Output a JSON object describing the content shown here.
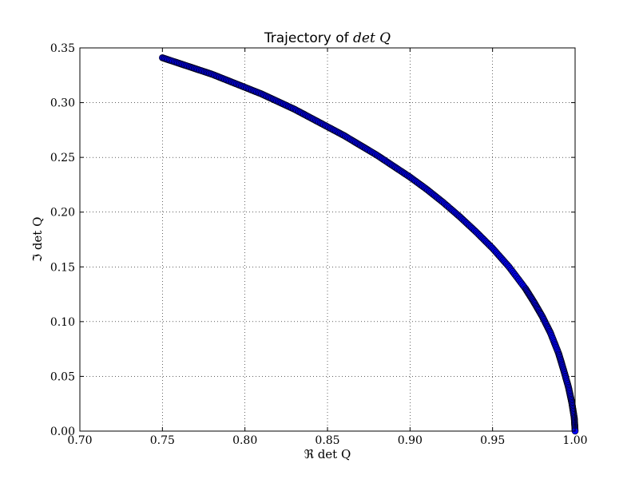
{
  "chart_data": {
    "type": "scatter",
    "title": {
      "prefix": "Trajectory of ",
      "math": "det Q"
    },
    "xlabel": "ℜ det Q",
    "ylabel": "ℑ det Q",
    "xlim": [
      0.7,
      1.0
    ],
    "ylim": [
      0.0,
      0.35
    ],
    "x_ticks": [
      "0.70",
      "0.75",
      "0.80",
      "0.85",
      "0.90",
      "0.95",
      "1.00"
    ],
    "y_ticks": [
      "0.00",
      "0.05",
      "0.10",
      "0.15",
      "0.20",
      "0.25",
      "0.30",
      "0.35"
    ],
    "grid": true,
    "marker_color": "#0000ff",
    "marker_edge_color": "#000000",
    "series": [
      {
        "x": [
          0.75,
          0.76,
          0.77,
          0.78,
          0.79,
          0.8,
          0.81,
          0.82,
          0.83,
          0.84,
          0.85,
          0.86,
          0.87,
          0.88,
          0.89,
          0.9,
          0.91,
          0.92,
          0.93,
          0.94,
          0.95,
          0.96,
          0.97,
          0.975,
          0.98,
          0.985,
          0.99,
          0.993,
          0.996,
          0.998,
          0.9995,
          1.0
        ],
        "y": [
          0.341,
          0.336,
          0.331,
          0.326,
          0.32,
          0.314,
          0.308,
          0.301,
          0.294,
          0.286,
          0.278,
          0.27,
          0.261,
          0.252,
          0.242,
          0.232,
          0.221,
          0.209,
          0.196,
          0.182,
          0.167,
          0.15,
          0.13,
          0.118,
          0.105,
          0.09,
          0.071,
          0.056,
          0.04,
          0.026,
          0.012,
          0.0
        ]
      }
    ]
  }
}
